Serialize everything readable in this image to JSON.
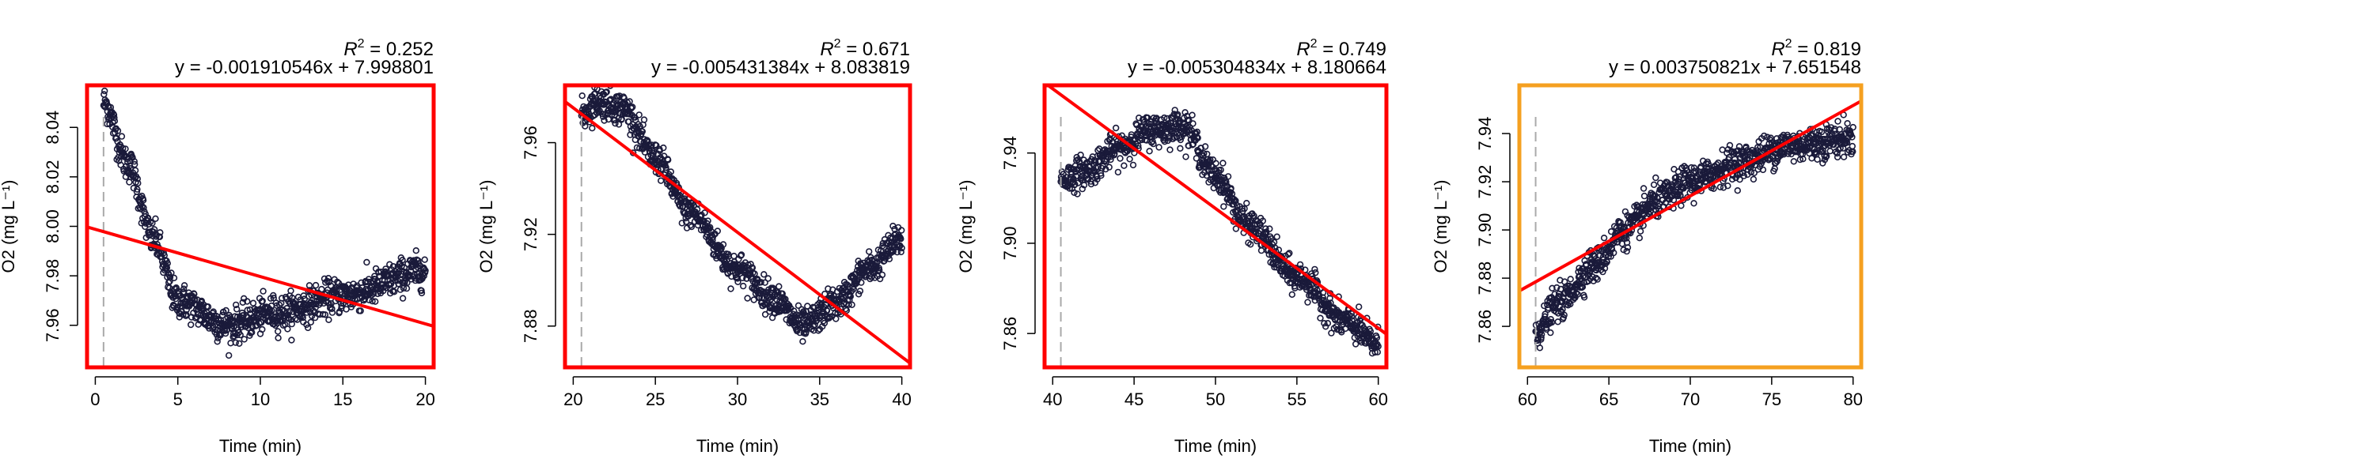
{
  "figure": {
    "x_label": "Time (min)",
    "y_label": "O2 (mg L⁻¹)",
    "colors": {
      "points": "#1a1a3a",
      "fit_line": "#ff0000",
      "vline": "#aaaaaa",
      "axis": "#000000"
    }
  },
  "chart_data": [
    {
      "type": "scatter",
      "title_r2_label": "R",
      "title_r2_value": " = 0.252",
      "equation": "y = -0.001910546x + 7.998801",
      "xlabel": "Time (min)",
      "ylabel": "O2 (mg L⁻¹)",
      "border_color": "#ff0000",
      "xlim": [
        -0.5,
        20.5
      ],
      "ylim": [
        7.943,
        8.057
      ],
      "x_ticks": [
        0,
        5,
        10,
        15,
        20
      ],
      "y_ticks": [
        7.96,
        7.98,
        8.0,
        8.02,
        8.04
      ],
      "y_tick_labels": [
        "7.96",
        "7.98",
        "8.00",
        "8.02",
        "8.04"
      ],
      "vline_x": 0.5,
      "fit": {
        "slope": -0.001910546,
        "intercept": 7.998801
      },
      "series_profile": {
        "x_range": [
          0.5,
          20
        ],
        "knots": [
          [
            0.5,
            8.05
          ],
          [
            2,
            8.025
          ],
          [
            3.5,
            7.995
          ],
          [
            5,
            7.97
          ],
          [
            8,
            7.96
          ],
          [
            11,
            7.965
          ],
          [
            15,
            7.972
          ],
          [
            20,
            7.982
          ]
        ],
        "noise": 0.0035
      }
    },
    {
      "type": "scatter",
      "title_r2_label": "R",
      "title_r2_value": " = 0.671",
      "equation": "y = -0.005431384x + 8.083819",
      "xlabel": "Time (min)",
      "ylabel": "O2 (mg L⁻¹)",
      "border_color": "#ff0000",
      "xlim": [
        19.5,
        40.5
      ],
      "ylim": [
        7.862,
        7.985
      ],
      "x_ticks": [
        20,
        25,
        30,
        35,
        40
      ],
      "y_ticks": [
        7.88,
        7.92,
        7.96
      ],
      "y_tick_labels": [
        "7.88",
        "7.92",
        "7.96"
      ],
      "vline_x": 20.5,
      "fit": {
        "slope": -0.005431384,
        "intercept": 8.083819
      },
      "series_profile": {
        "x_range": [
          20.5,
          40
        ],
        "knots": [
          [
            20.5,
            7.972
          ],
          [
            21.5,
            7.978
          ],
          [
            23,
            7.975
          ],
          [
            25,
            7.953
          ],
          [
            27,
            7.93
          ],
          [
            30,
            7.905
          ],
          [
            32,
            7.893
          ],
          [
            34,
            7.88
          ],
          [
            36,
            7.89
          ],
          [
            38,
            7.905
          ],
          [
            40,
            7.918
          ]
        ],
        "noise": 0.0035
      }
    },
    {
      "type": "scatter",
      "title_r2_label": "R",
      "title_r2_value": " = 0.749",
      "equation": "y = -0.005304834x + 8.180664",
      "xlabel": "Time (min)",
      "ylabel": "O2 (mg L⁻¹)",
      "border_color": "#ff0000",
      "xlim": [
        39.5,
        60.5
      ],
      "ylim": [
        7.845,
        7.97
      ],
      "x_ticks": [
        40,
        45,
        50,
        55,
        60
      ],
      "y_ticks": [
        7.86,
        7.9,
        7.94
      ],
      "y_tick_labels": [
        "7.86",
        "7.90",
        "7.94"
      ],
      "vline_x": 40.5,
      "fit": {
        "slope": -0.005304834,
        "intercept": 8.180664
      },
      "series_profile": {
        "x_range": [
          40.5,
          60
        ],
        "knots": [
          [
            40.5,
            7.928
          ],
          [
            42,
            7.932
          ],
          [
            44,
            7.942
          ],
          [
            46,
            7.95
          ],
          [
            48,
            7.952
          ],
          [
            50,
            7.93
          ],
          [
            52,
            7.908
          ],
          [
            55,
            7.885
          ],
          [
            58,
            7.865
          ],
          [
            60,
            7.855
          ]
        ],
        "noise": 0.0035
      }
    },
    {
      "type": "scatter",
      "title_r2_label": "R",
      "title_r2_value": " = 0.819",
      "equation": "y = 0.003750821x + 7.651548",
      "xlabel": "Time (min)",
      "ylabel": "O2 (mg L⁻¹)",
      "border_color": "#f5a020",
      "xlim": [
        59.5,
        80.5
      ],
      "ylim": [
        7.843,
        7.96
      ],
      "x_ticks": [
        60,
        65,
        70,
        75,
        80
      ],
      "y_ticks": [
        7.86,
        7.88,
        7.9,
        7.92,
        7.94
      ],
      "y_tick_labels": [
        "7.86",
        "7.88",
        "7.90",
        "7.92",
        "7.94"
      ],
      "vline_x": 60.5,
      "fit": {
        "slope": 0.003750821,
        "intercept": 7.651548
      },
      "series_profile": {
        "x_range": [
          60.5,
          80
        ],
        "knots": [
          [
            60.5,
            7.858
          ],
          [
            62,
            7.87
          ],
          [
            64,
            7.885
          ],
          [
            66,
            7.9
          ],
          [
            68,
            7.912
          ],
          [
            70,
            7.92
          ],
          [
            73,
            7.928
          ],
          [
            76,
            7.935
          ],
          [
            80,
            7.938
          ]
        ],
        "noise": 0.0035
      }
    }
  ]
}
